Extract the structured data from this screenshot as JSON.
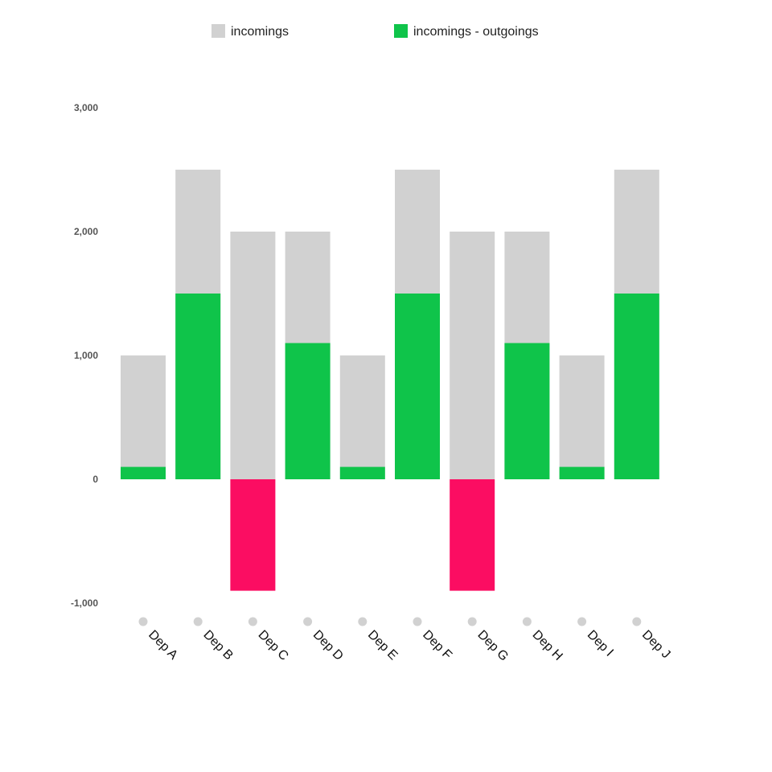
{
  "chart_data": {
    "type": "bar",
    "categories": [
      "Dep A",
      "Dep B",
      "Dep C",
      "Dep D",
      "Dep E",
      "Dep F",
      "Dep G",
      "Dep H",
      "Dep I",
      "Dep J"
    ],
    "series": [
      {
        "name": "incomings",
        "values": [
          1000,
          2500,
          2000,
          2000,
          1000,
          2500,
          2000,
          2000,
          1000,
          2500
        ]
      },
      {
        "name": "incomings - outgoings",
        "values": [
          100,
          1500,
          -900,
          1100,
          100,
          1500,
          -900,
          1100,
          100,
          1500
        ]
      }
    ],
    "ylim": [
      -1000,
      3000
    ],
    "yticks": [
      -1000,
      0,
      1000,
      2000,
      3000
    ],
    "ytick_labels": [
      "-1,000",
      "0",
      "1,000",
      "2,000",
      "3,000"
    ],
    "legend_position": "top-center",
    "grid": false,
    "colors": {
      "incomings": "#d1d1d1",
      "positive": "#0fc44a",
      "negative": "#fb0d62",
      "marker": "#d1d1d1"
    }
  }
}
